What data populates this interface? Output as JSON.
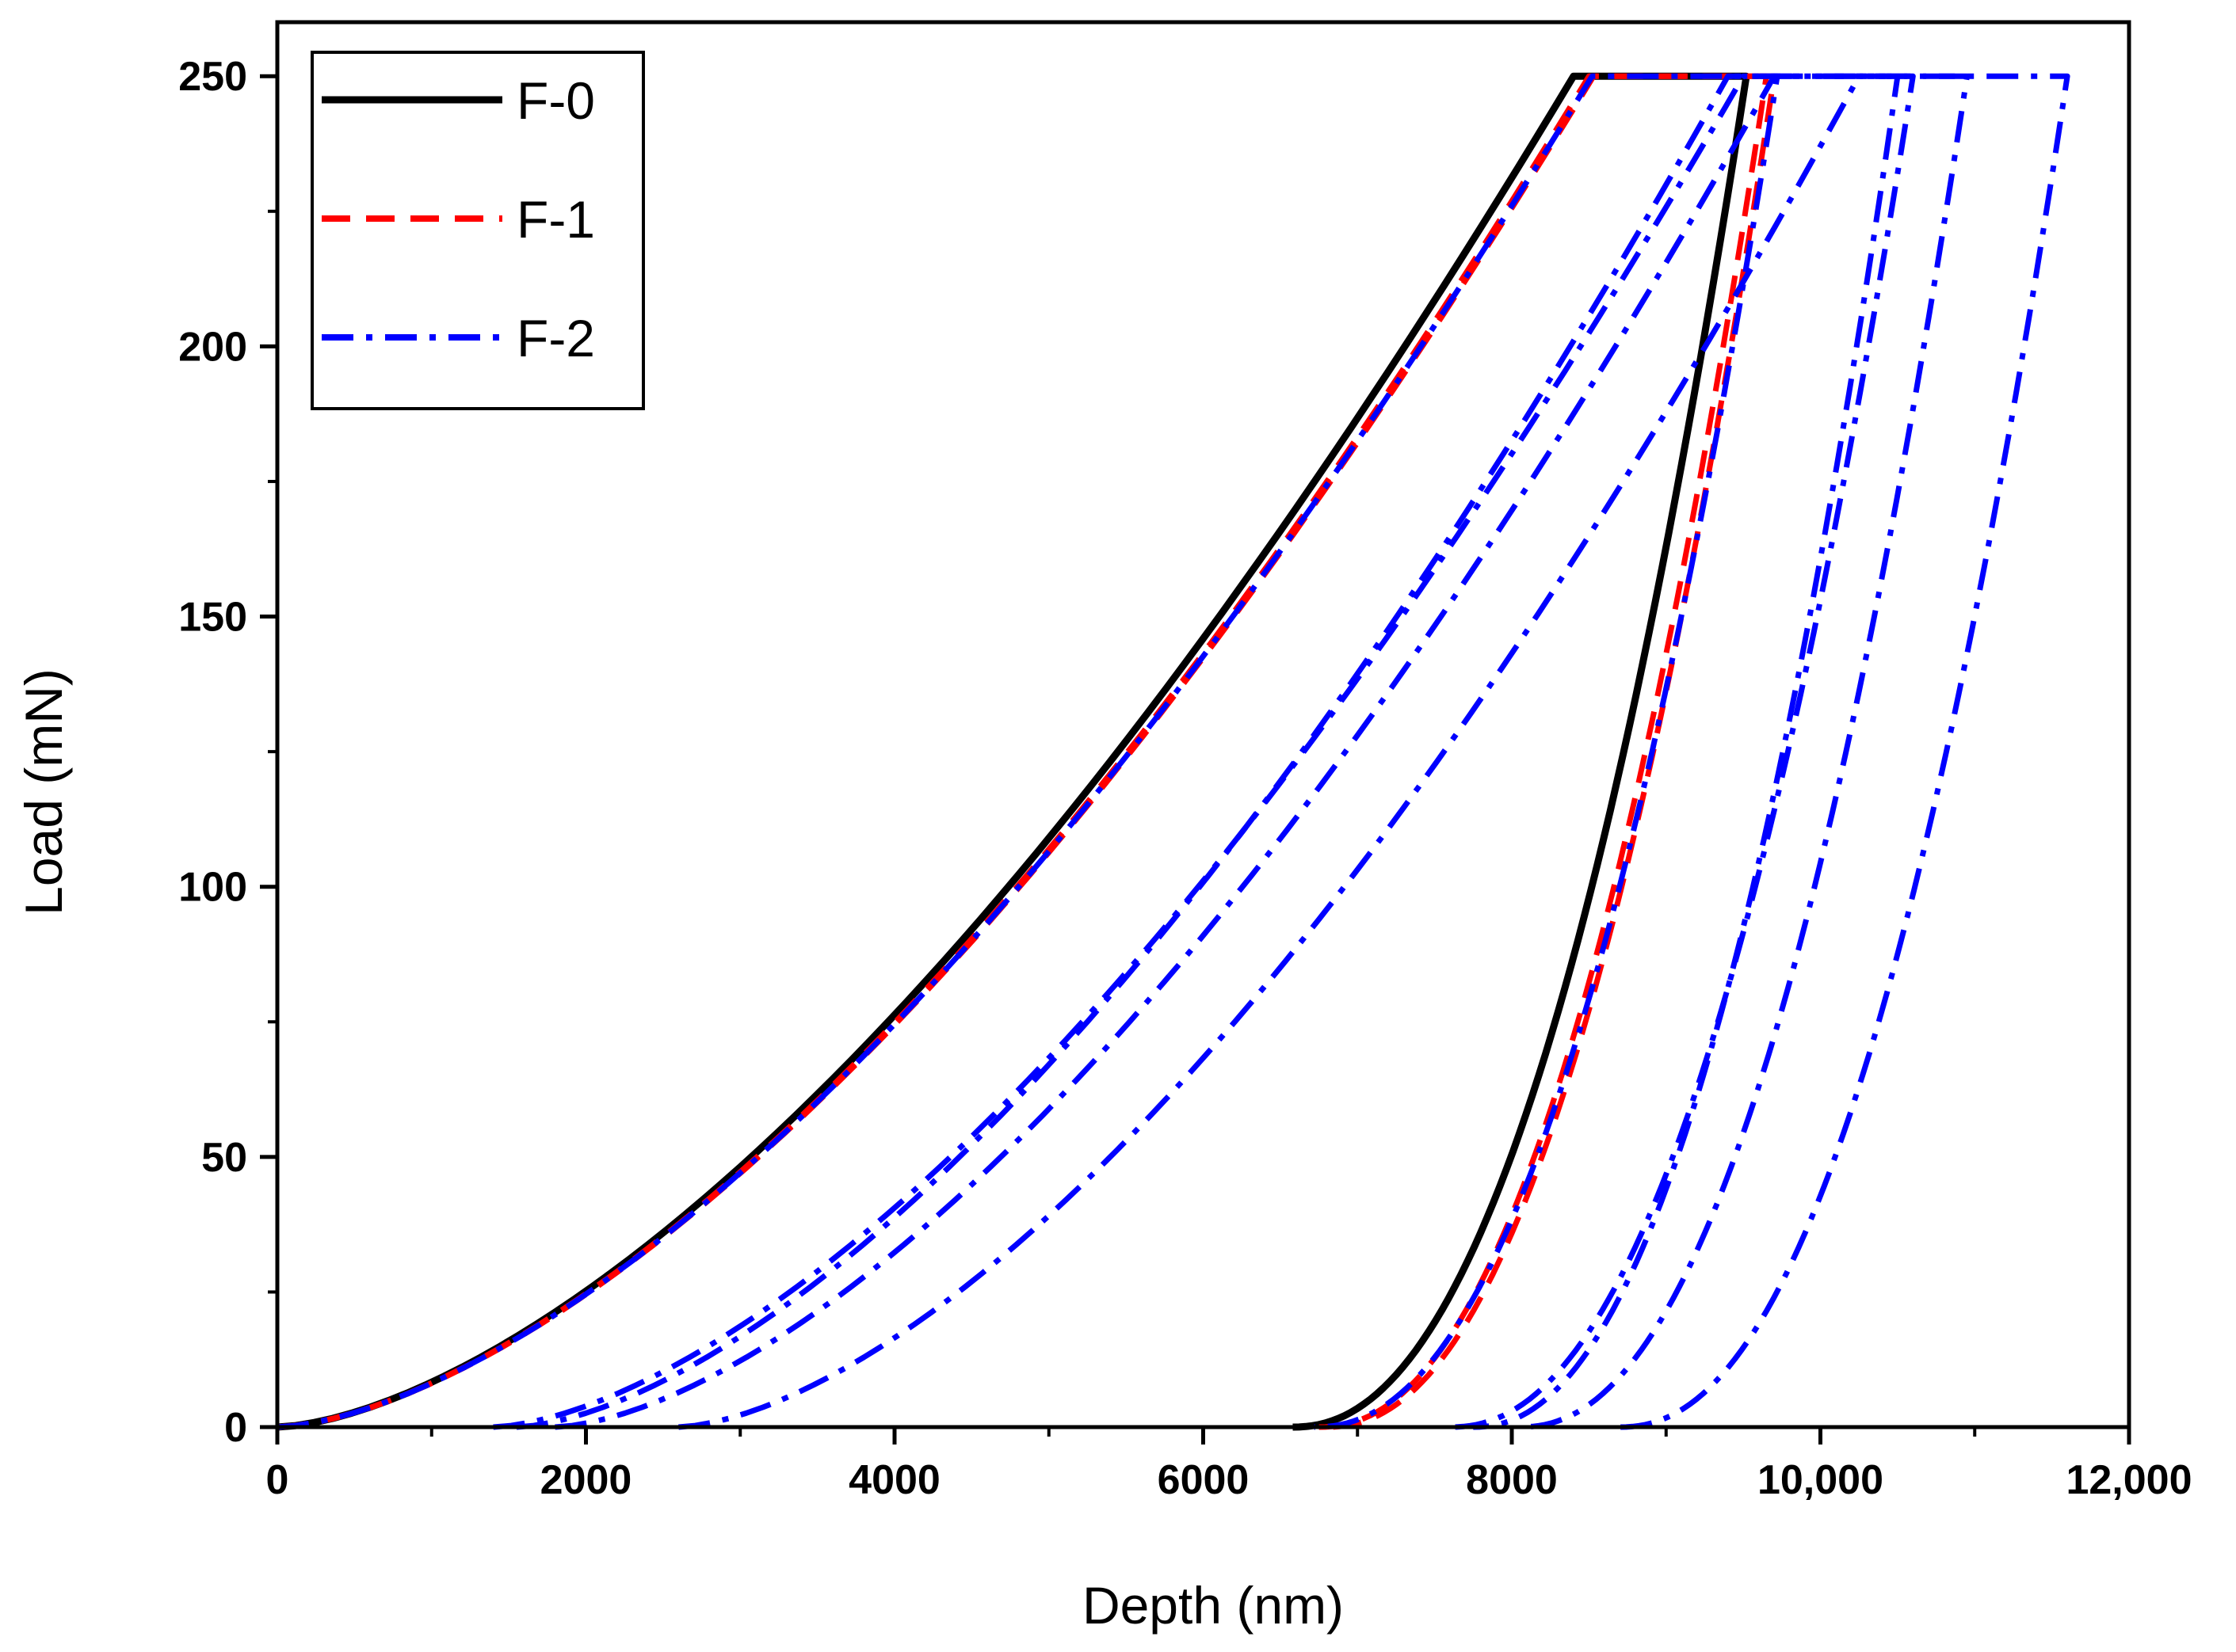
{
  "chart_data": {
    "type": "line",
    "title": "",
    "xlabel": "Depth (nm)",
    "ylabel": "Load (mN)",
    "xlim": [
      0,
      12000
    ],
    "ylim": [
      0,
      260
    ],
    "xticks": [
      0,
      2000,
      4000,
      6000,
      8000,
      10000,
      12000
    ],
    "xtick_labels": [
      "0",
      "2000",
      "4000",
      "6000",
      "8000",
      "10,000",
      "12,000"
    ],
    "yticks": [
      0,
      50,
      100,
      150,
      200,
      250
    ],
    "ytick_labels": [
      "0",
      "50",
      "100",
      "150",
      "200",
      "250"
    ],
    "grid": false,
    "legend": {
      "position": "top-left",
      "entries": [
        {
          "label": "F-0",
          "color": "#000000",
          "style": "solid"
        },
        {
          "label": "F-1",
          "color": "#ff0000",
          "style": "dashed"
        },
        {
          "label": "F-2",
          "color": "#0000ff",
          "style": "dashdot"
        }
      ]
    },
    "series": [
      {
        "name": "F-0",
        "color": "#000000",
        "style": "solid",
        "curves": [
          {
            "h0": 0,
            "hmax": 8400,
            "hhold": 9520,
            "hf": 6580,
            "pmax": 250
          }
        ]
      },
      {
        "name": "F-1",
        "color": "#ff0000",
        "style": "dashed",
        "curves": [
          {
            "h0": 0,
            "hmax": 8530,
            "hhold": 9700,
            "hf": 6800,
            "pmax": 250
          },
          {
            "h0": 0,
            "hmax": 8500,
            "hhold": 9650,
            "hf": 6750,
            "pmax": 250
          }
        ]
      },
      {
        "name": "F-2",
        "color": "#0000ff",
        "style": "dashdot",
        "curves": [
          {
            "h0": 0,
            "hmax": 8520,
            "hhold": 9720,
            "hf": 6720,
            "pmax": 250
          },
          {
            "h0": 1550,
            "hmax": 9400,
            "hhold": 10600,
            "hf": 7600,
            "pmax": 250
          },
          {
            "h0": 1400,
            "hmax": 9500,
            "hhold": 10500,
            "hf": 7750,
            "pmax": 250
          },
          {
            "h0": 1800,
            "hmax": 9700,
            "hhold": 10950,
            "hf": 8050,
            "pmax": 250
          },
          {
            "h0": 2600,
            "hmax": 10250,
            "hhold": 11600,
            "hf": 8700,
            "pmax": 250
          }
        ]
      }
    ]
  }
}
